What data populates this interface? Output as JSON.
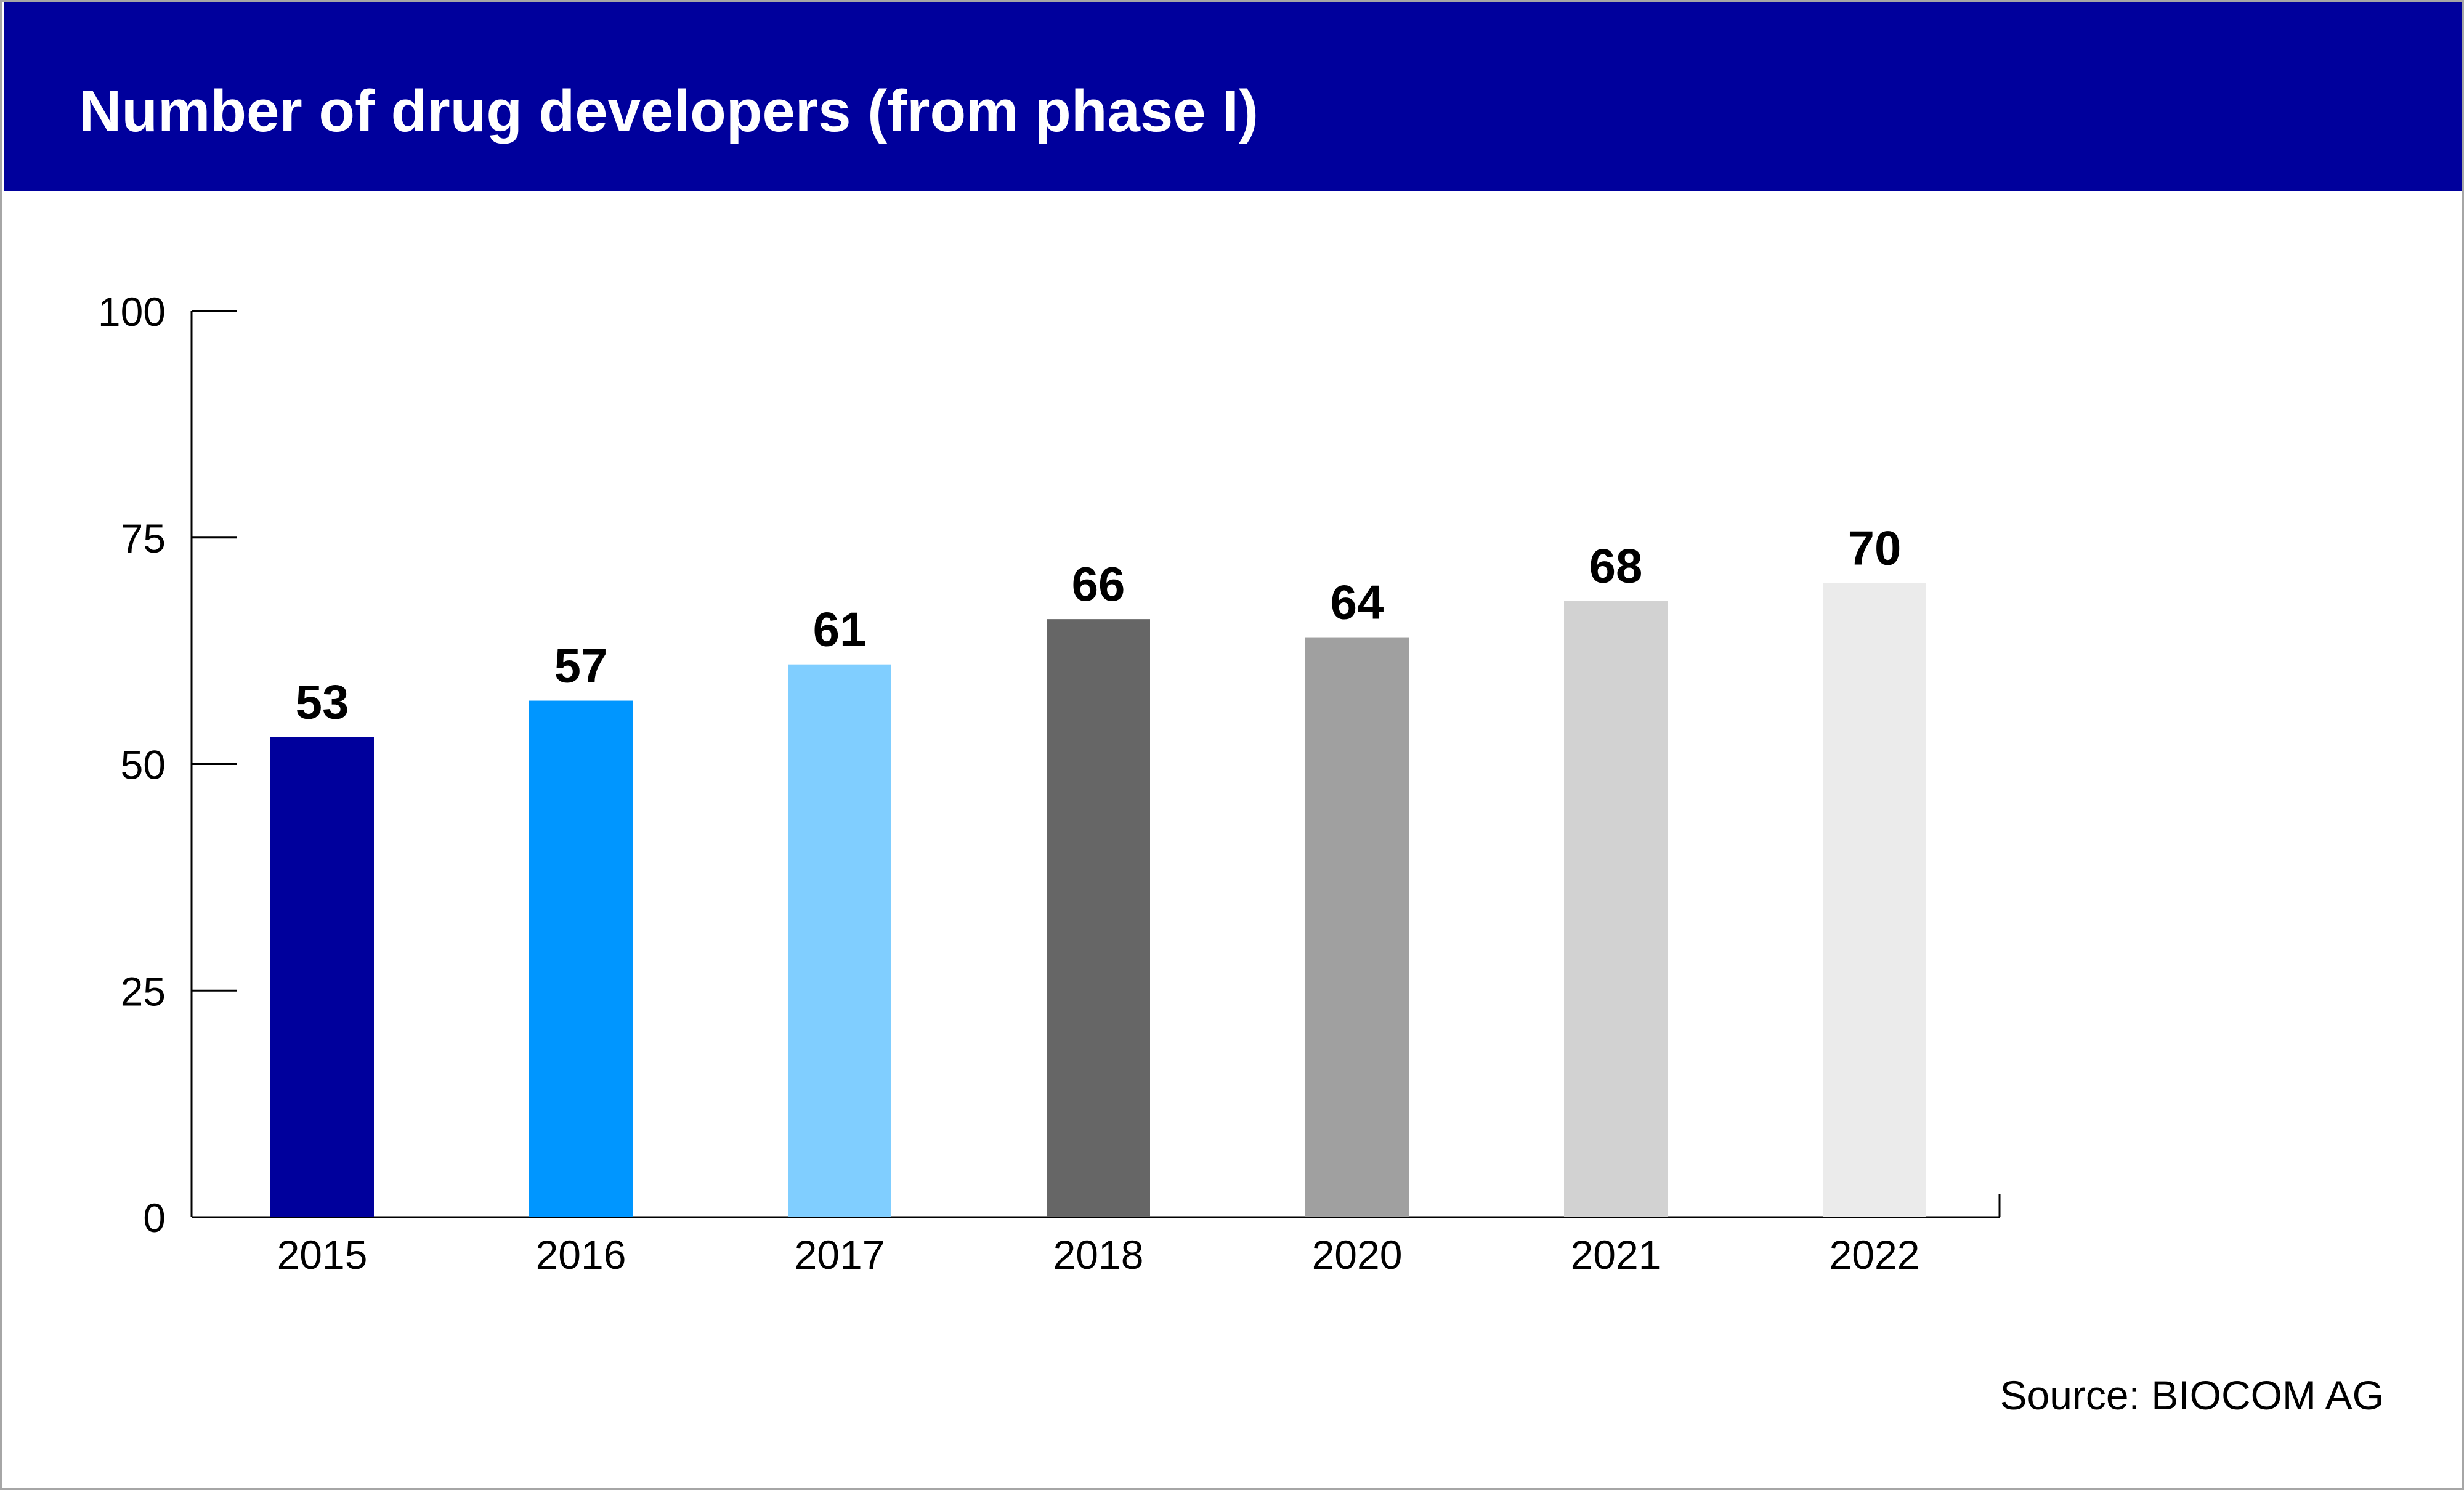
{
  "header": {
    "title": "Number of drug developers (from phase I)",
    "background_color": "#00009c"
  },
  "footer": {
    "source": "Source: BIOCOM AG"
  },
  "chart_data": {
    "type": "bar",
    "title": "Number of drug developers (from phase I)",
    "xlabel": "",
    "ylabel": "",
    "categories": [
      "2015",
      "2016",
      "2017",
      "2018",
      "2020",
      "2021",
      "2022"
    ],
    "values": [
      53,
      57,
      61,
      66,
      64,
      68,
      70
    ],
    "data_labels": [
      "53",
      "57",
      "61",
      "66",
      "64",
      "68",
      "70"
    ],
    "bar_colors": [
      "#00009c",
      "#0096ff",
      "#80ceff",
      "#666666",
      "#a0a0a0",
      "#d2d2d2",
      "#ebebeb"
    ],
    "ylim": [
      0,
      100
    ],
    "yticks": [
      0,
      25,
      50,
      75,
      100
    ],
    "ytick_labels": [
      "0",
      "25",
      "50",
      "75",
      "100"
    ],
    "grid": false,
    "legend": "none"
  }
}
